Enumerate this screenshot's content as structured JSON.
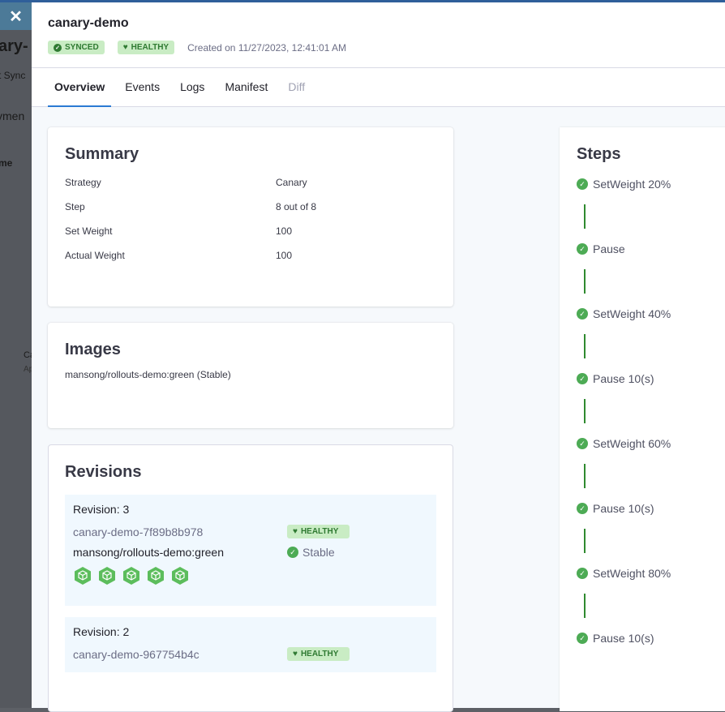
{
  "background": {
    "fragments": [
      "ary-",
      "t Sync",
      "ymen",
      "me",
      "Ca",
      "Ap"
    ]
  },
  "close_label": "✕",
  "header": {
    "title": "canary-demo",
    "sync_badge": "SYNCED",
    "health_badge": "HEALTHY",
    "created": "Created on 11/27/2023, 12:41:01 AM"
  },
  "tabs": [
    {
      "label": "Overview"
    },
    {
      "label": "Events"
    },
    {
      "label": "Logs"
    },
    {
      "label": "Manifest"
    },
    {
      "label": "Diff"
    }
  ],
  "summary": {
    "title": "Summary",
    "rows": [
      {
        "k": "Strategy",
        "v": "Canary"
      },
      {
        "k": "Step",
        "v": "8 out of 8"
      },
      {
        "k": "Set Weight",
        "v": "100"
      },
      {
        "k": "Actual Weight",
        "v": "100"
      }
    ]
  },
  "images": {
    "title": "Images",
    "value": "mansong/rollouts-demo:green (Stable)"
  },
  "revisions": {
    "title": "Revisions",
    "items": [
      {
        "label": "Revision: 3",
        "replicaset": "canary-demo-7f89b8b978",
        "status": "HEALTHY",
        "image": "mansong/rollouts-demo:green",
        "image_status": "Stable",
        "pods": 5
      },
      {
        "label": "Revision: 2",
        "replicaset": "canary-demo-967754b4c",
        "status": "HEALTHY"
      }
    ]
  },
  "steps": {
    "title": "Steps",
    "items": [
      "SetWeight 20%",
      "Pause",
      "SetWeight 40%",
      "Pause 10(s)",
      "SetWeight 60%",
      "Pause 10(s)",
      "SetWeight 80%",
      "Pause 10(s)"
    ]
  },
  "colors": {
    "healthy": "#4dab55",
    "accent": "#2b7ad3"
  }
}
